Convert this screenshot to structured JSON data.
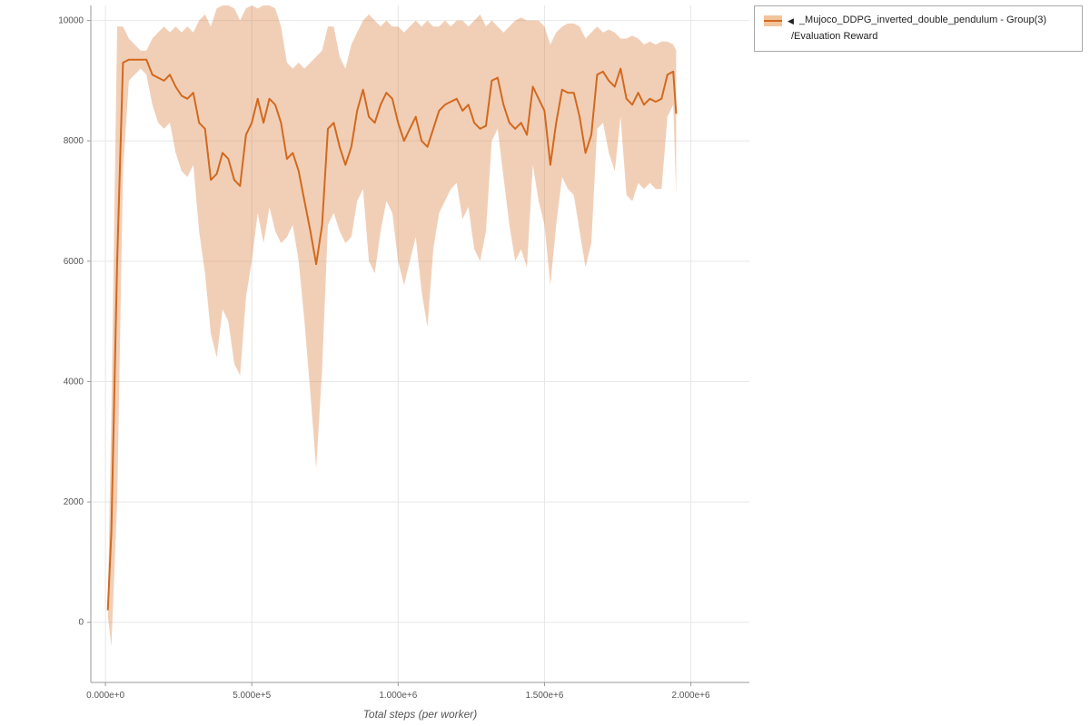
{
  "legend": {
    "collapse_icon": "◀",
    "label": "_Mujoco_DDPG_inverted_double_pendulum - Group(3)",
    "sublabel": "/Evaluation Reward"
  },
  "colors": {
    "line": "#d2691e",
    "band": "rgba(210,105,30,0.32)",
    "swatch_fill": "#f2c49c",
    "grid": "#e7e7e7",
    "axis": "#9a9a9a",
    "tick_text": "#555555"
  },
  "chart_data": {
    "type": "line",
    "title": "",
    "xlabel": "Total steps (per worker)",
    "ylabel": "",
    "xlim": [
      -50000,
      2200000
    ],
    "ylim": [
      -1000,
      10250
    ],
    "grid": true,
    "legend_position": "top-right",
    "x_ticks": [
      0,
      500000,
      1000000,
      1500000,
      2000000
    ],
    "x_tick_labels": [
      "0.000e+0",
      "5.000e+5",
      "1.000e+6",
      "1.500e+6",
      "2.000e+6"
    ],
    "y_ticks": [
      0,
      2000,
      4000,
      6000,
      8000,
      10000
    ],
    "y_tick_labels": [
      "0",
      "2000",
      "4000",
      "6000",
      "8000",
      "10000"
    ],
    "series": [
      {
        "name": "_Mujoco_DDPG_inverted_double_pendulum - Group(3) /Evaluation Reward",
        "x": [
          8000,
          20000,
          40000,
          60000,
          80000,
          100000,
          120000,
          140000,
          160000,
          180000,
          200000,
          220000,
          240000,
          260000,
          280000,
          300000,
          320000,
          340000,
          360000,
          380000,
          400000,
          420000,
          440000,
          460000,
          480000,
          500000,
          520000,
          540000,
          560000,
          580000,
          600000,
          620000,
          640000,
          660000,
          680000,
          700000,
          720000,
          740000,
          760000,
          780000,
          800000,
          820000,
          840000,
          860000,
          880000,
          900000,
          920000,
          940000,
          960000,
          980000,
          1000000,
          1020000,
          1040000,
          1060000,
          1080000,
          1100000,
          1120000,
          1140000,
          1160000,
          1180000,
          1200000,
          1220000,
          1240000,
          1260000,
          1280000,
          1300000,
          1320000,
          1340000,
          1360000,
          1380000,
          1400000,
          1420000,
          1440000,
          1460000,
          1480000,
          1500000,
          1520000,
          1540000,
          1560000,
          1580000,
          1600000,
          1620000,
          1640000,
          1660000,
          1680000,
          1700000,
          1720000,
          1740000,
          1760000,
          1780000,
          1800000,
          1820000,
          1840000,
          1860000,
          1880000,
          1900000,
          1920000,
          1940000,
          1950000
        ],
        "mean": [
          200,
          1500,
          6000,
          9300,
          9350,
          9350,
          9350,
          9350,
          9100,
          9050,
          9000,
          9100,
          8900,
          8750,
          8700,
          8800,
          8300,
          8200,
          7350,
          7450,
          7800,
          7700,
          7350,
          7250,
          8100,
          8300,
          8700,
          8300,
          8700,
          8600,
          8300,
          7700,
          7800,
          7500,
          7000,
          6500,
          5950,
          6600,
          8200,
          8300,
          7900,
          7600,
          7900,
          8500,
          8850,
          8400,
          8300,
          8600,
          8800,
          8700,
          8300,
          8000,
          8200,
          8400,
          8000,
          7900,
          8200,
          8500,
          8600,
          8650,
          8700,
          8500,
          8600,
          8300,
          8200,
          8250,
          9000,
          9050,
          8600,
          8300,
          8200,
          8300,
          8100,
          8900,
          8700,
          8500,
          7600,
          8300,
          8850,
          8800,
          8800,
          8400,
          7800,
          8100,
          9100,
          9150,
          9000,
          8900,
          9200,
          8700,
          8600,
          8800,
          8600,
          8700,
          8650,
          8700,
          9100,
          9150,
          8450
        ],
        "lower": [
          100,
          -400,
          2000,
          7500,
          9000,
          9100,
          9200,
          9100,
          8600,
          8300,
          8200,
          8300,
          7800,
          7500,
          7400,
          7600,
          6500,
          5800,
          4800,
          4400,
          5200,
          5000,
          4300,
          4100,
          5400,
          6000,
          6800,
          6300,
          6900,
          6500,
          6300,
          6400,
          6600,
          6000,
          5000,
          3800,
          2550,
          4200,
          6600,
          6800,
          6500,
          6300,
          6400,
          7000,
          7200,
          6000,
          5800,
          6500,
          7000,
          6800,
          6000,
          5600,
          6000,
          6400,
          5500,
          4900,
          6200,
          6800,
          7000,
          7200,
          7300,
          6700,
          6900,
          6200,
          6000,
          6500,
          8000,
          8200,
          7400,
          6600,
          6000,
          6200,
          5900,
          7600,
          7000,
          6600,
          5600,
          6600,
          7400,
          7200,
          7100,
          6500,
          5900,
          6300,
          8200,
          8300,
          7800,
          7500,
          8400,
          7100,
          7000,
          7300,
          7200,
          7300,
          7200,
          7200,
          8400,
          8600,
          7100
        ],
        "upper": [
          300,
          3500,
          9900,
          9900,
          9700,
          9600,
          9500,
          9500,
          9700,
          9800,
          9900,
          9800,
          9900,
          9800,
          9900,
          9800,
          10000,
          10100,
          9900,
          10200,
          10250,
          10250,
          10200,
          10000,
          10200,
          10250,
          10200,
          10250,
          10250,
          10200,
          9900,
          9300,
          9200,
          9300,
          9200,
          9300,
          9400,
          9500,
          9900,
          9900,
          9400,
          9200,
          9600,
          9800,
          10000,
          10100,
          10000,
          9900,
          10000,
          9900,
          9900,
          9800,
          9900,
          10000,
          9900,
          10000,
          9900,
          9900,
          10000,
          9900,
          10000,
          10000,
          9900,
          10000,
          10100,
          9900,
          10000,
          9900,
          9800,
          9900,
          10000,
          10050,
          10000,
          10000,
          10000,
          9900,
          9600,
          9800,
          9900,
          9950,
          9950,
          9900,
          9700,
          9800,
          9900,
          9800,
          9850,
          9800,
          9700,
          9700,
          9750,
          9700,
          9600,
          9650,
          9600,
          9650,
          9650,
          9600,
          9500
        ]
      }
    ]
  }
}
